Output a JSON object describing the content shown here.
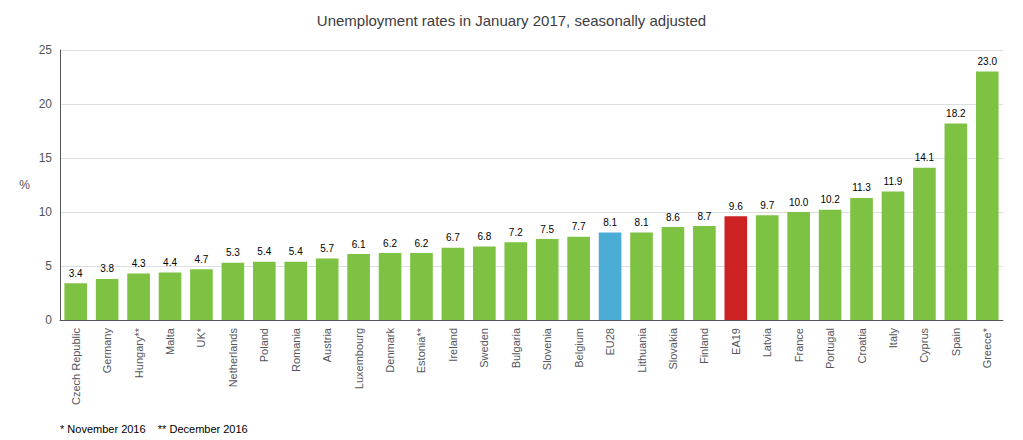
{
  "chart_data": {
    "type": "bar",
    "title": "Unemployment rates in January 2017, seasonally adjusted",
    "ylabel": "%",
    "categories": [
      "Czech Republic",
      "Germany",
      "Hungary**",
      "Malta",
      "UK*",
      "Netherlands",
      "Poland",
      "Romania",
      "Austria",
      "Luxembourg",
      "Denmark",
      "Estonia**",
      "Ireland",
      "Sweden",
      "Bulgaria",
      "Slovenia",
      "Belgium",
      "EU28",
      "Lithuania",
      "Slovakia",
      "Finland",
      "EA19",
      "Latvia",
      "France",
      "Portugal",
      "Croatia",
      "Italy",
      "Cyprus",
      "Spain",
      "Greece*"
    ],
    "values": [
      3.4,
      3.8,
      4.3,
      4.4,
      4.7,
      5.3,
      5.4,
      5.4,
      5.7,
      6.1,
      6.2,
      6.2,
      6.7,
      6.8,
      7.2,
      7.5,
      7.7,
      8.1,
      8.1,
      8.6,
      8.7,
      9.6,
      9.7,
      10.0,
      10.2,
      11.3,
      11.9,
      14.1,
      18.2,
      23.0
    ],
    "value_labels": [
      "3.4",
      "3.8",
      "4.3",
      "4.4",
      "4.7",
      "5.3",
      "5.4",
      "5.4",
      "5.7",
      "6.1",
      "6.2",
      "6.2",
      "6.7",
      "6.8",
      "7.2",
      "7.5",
      "7.7",
      "8.1",
      "8.1",
      "8.6",
      "8.7",
      "9.6",
      "9.7",
      "10.0",
      "10.2",
      "11.3",
      "11.9",
      "14.1",
      "18.2",
      "23.0"
    ],
    "colors": [
      "#7DC242",
      "#7DC242",
      "#7DC242",
      "#7DC242",
      "#7DC242",
      "#7DC242",
      "#7DC242",
      "#7DC242",
      "#7DC242",
      "#7DC242",
      "#7DC242",
      "#7DC242",
      "#7DC242",
      "#7DC242",
      "#7DC242",
      "#7DC242",
      "#7DC242",
      "#4BACD6",
      "#7DC242",
      "#7DC242",
      "#7DC242",
      "#CC2222",
      "#7DC242",
      "#7DC242",
      "#7DC242",
      "#7DC242",
      "#7DC242",
      "#7DC242",
      "#7DC242",
      "#7DC242"
    ],
    "ylim": [
      0,
      25
    ],
    "yticks": [
      0,
      5,
      10,
      15,
      20,
      25
    ],
    "grid": true,
    "data_labels": true,
    "annotations": [
      "* November 2016    ** December 2016"
    ]
  }
}
